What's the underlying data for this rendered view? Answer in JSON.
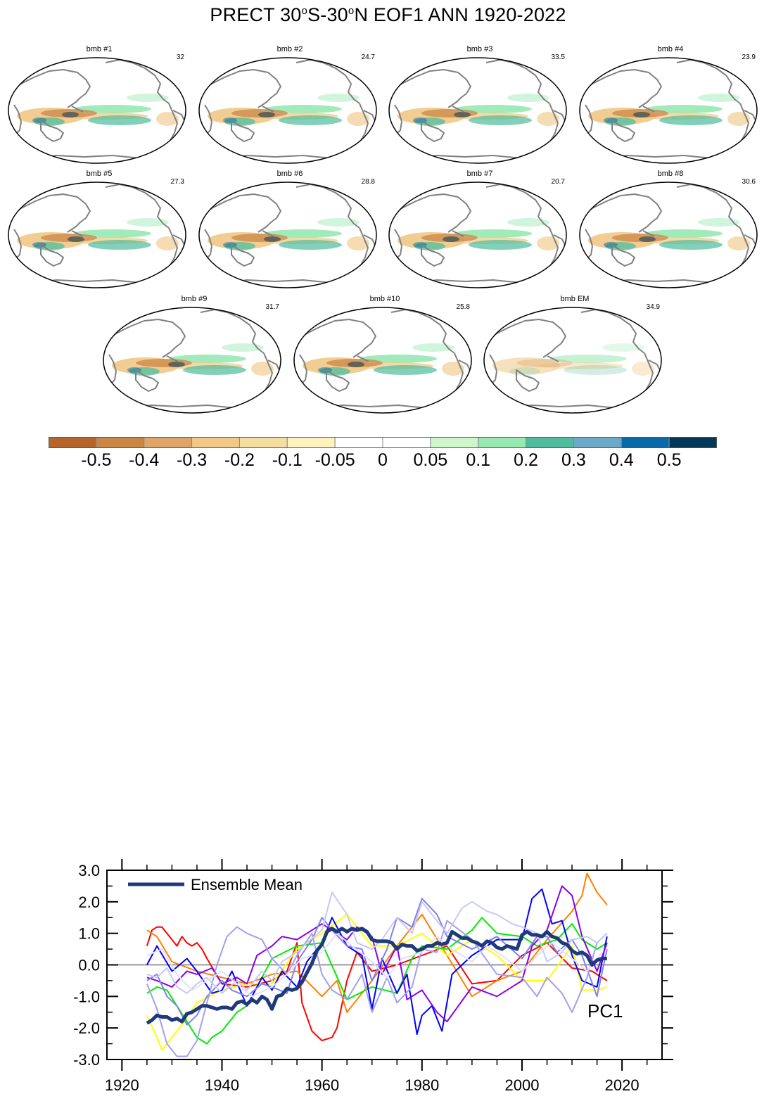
{
  "title": {
    "prefix": "PRECT 30",
    "deg1": "o",
    "mid": "S-30",
    "deg2": "o",
    "suffix": "N EOF1 ANN 1920-2022"
  },
  "panels": [
    {
      "title": "bmb #1",
      "pct": "32"
    },
    {
      "title": "bmb #2",
      "pct": "24.7"
    },
    {
      "title": "bmb #3",
      "pct": "33.5"
    },
    {
      "title": "bmb #4",
      "pct": "23.9"
    },
    {
      "title": "bmb #5",
      "pct": "27.3"
    },
    {
      "title": "bmb #6",
      "pct": "28.8"
    },
    {
      "title": "bmb #7",
      "pct": "20.7"
    },
    {
      "title": "bmb #8",
      "pct": "30.6"
    },
    {
      "title": "bmb #9",
      "pct": "31.7"
    },
    {
      "title": "bmb #10",
      "pct": "25.8"
    },
    {
      "title": "bmb EM",
      "pct": "34.9"
    }
  ],
  "colorbar": {
    "colors": [
      "#b5652a",
      "#cb8646",
      "#dfa467",
      "#f1c886",
      "#f4dd9f",
      "#fdf2bd",
      "#ffffff",
      "#ffffff",
      "#cdf7cb",
      "#97e8b1",
      "#4fbc9d",
      "#6baac6",
      "#0a6aa8",
      "#023858"
    ],
    "labels": [
      "-0.5",
      "-0.4",
      "-0.3",
      "-0.2",
      "-0.1",
      "-0.05",
      "0",
      "0.05",
      "0.1",
      "0.2",
      "0.3",
      "0.4",
      "0.5"
    ]
  },
  "map_colors": {
    "land_outline": "#808080",
    "brown": "#cb8646",
    "tan": "#f1c886",
    "green": "#97e8b1",
    "teal": "#4fbc9d",
    "blue": "#0a6aa8",
    "navy": "#023858"
  },
  "chart_data": {
    "type": "line",
    "title": "",
    "annotation": "PC1",
    "xlabel": "",
    "ylabel": "",
    "xlim": [
      1917,
      2028
    ],
    "ylim": [
      -3.0,
      3.0
    ],
    "xticks": [
      "1920",
      "1940",
      "1960",
      "1980",
      "2000",
      "2020"
    ],
    "yticks": [
      "-3.0",
      "-2.0",
      "-1.0",
      "0.0",
      "1.0",
      "2.0",
      "3.0"
    ],
    "legend": {
      "label": "Ensemble Mean",
      "placement": "top-left"
    },
    "reference_line": 0.0,
    "series": [
      {
        "color": "#ff0000",
        "x": [
          1925,
          1926,
          1927,
          1928,
          1929,
          1930,
          1931,
          1932,
          1933,
          1934,
          1935,
          1936,
          1937,
          1940,
          1945,
          1950,
          1953,
          1955,
          1956,
          1958,
          1960,
          1962,
          1963,
          1965,
          1967,
          1970,
          1975,
          1980,
          1985,
          1990,
          1995,
          2000,
          2005,
          2010,
          2014,
          2017
        ],
        "y": [
          0.6,
          1.1,
          1.2,
          1.2,
          1.0,
          0.8,
          0.6,
          0.9,
          0.7,
          0.6,
          0.7,
          0.5,
          0.2,
          -0.6,
          -0.7,
          -0.5,
          -0.2,
          0.7,
          -1.2,
          -2.1,
          -2.4,
          -2.3,
          -2.0,
          -0.5,
          0.4,
          -0.2,
          0.0,
          0.3,
          0.6,
          -0.6,
          -0.5,
          0.3,
          0.7,
          -0.1,
          -0.2,
          -0.5
        ]
      },
      {
        "color": "#ff8000",
        "x": [
          1925,
          1927,
          1930,
          1935,
          1940,
          1945,
          1950,
          1955,
          1960,
          1963,
          1965,
          1970,
          1975,
          1980,
          1985,
          1990,
          1995,
          2000,
          2005,
          2010,
          2012,
          2013,
          2015,
          2017
        ],
        "y": [
          1.1,
          0.9,
          0.1,
          -0.2,
          -0.4,
          -0.6,
          -0.3,
          -0.2,
          -1.0,
          -0.5,
          -1.5,
          -0.5,
          0.6,
          1.6,
          0.3,
          -1.0,
          -0.5,
          -0.2,
          0.8,
          1.7,
          2.2,
          2.9,
          2.3,
          1.9
        ]
      },
      {
        "color": "#ffff00",
        "x": [
          1925,
          1927,
          1928,
          1930,
          1932,
          1935,
          1940,
          1945,
          1950,
          1955,
          1960,
          1965,
          1970,
          1975,
          1980,
          1985,
          1990,
          1995,
          2000,
          2005,
          2010,
          2012,
          2015,
          2017
        ],
        "y": [
          -1.6,
          -2.3,
          -2.7,
          -2.3,
          -1.9,
          -1.2,
          -0.8,
          -0.6,
          -0.6,
          0.5,
          1.0,
          1.6,
          0.6,
          0.6,
          1.0,
          0.3,
          0.8,
          0.3,
          -0.5,
          -0.5,
          0.6,
          -0.8,
          -0.8,
          -0.7
        ]
      },
      {
        "color": "#00ee00",
        "x": [
          1925,
          1927,
          1929,
          1931,
          1933,
          1935,
          1937,
          1938,
          1940,
          1943,
          1945,
          1948,
          1950,
          1955,
          1960,
          1965,
          1970,
          1975,
          1978,
          1980,
          1985,
          1990,
          1992,
          1995,
          2000,
          2003,
          2007,
          2010,
          2012,
          2015,
          2017
        ],
        "y": [
          -0.9,
          -0.7,
          -0.8,
          -1.3,
          -1.8,
          -2.3,
          -2.5,
          -2.3,
          -2.1,
          -1.5,
          -1.3,
          -0.4,
          0.2,
          0.6,
          0.7,
          -1.1,
          -0.7,
          -0.9,
          0.2,
          0.6,
          0.5,
          1.1,
          1.5,
          1.0,
          0.9,
          0.6,
          0.8,
          1.3,
          0.8,
          0.5,
          0.7
        ]
      },
      {
        "color": "#0000ff",
        "x": [
          1925,
          1927,
          1930,
          1933,
          1935,
          1938,
          1940,
          1942,
          1945,
          1948,
          1950,
          1952,
          1955,
          1957,
          1960,
          1962,
          1965,
          1968,
          1970,
          1972,
          1975,
          1977,
          1979,
          1980,
          1982,
          1984,
          1986,
          1990,
          1995,
          2000,
          2002,
          2004,
          2006,
          2008,
          2010,
          2012,
          2015,
          2017
        ],
        "y": [
          0.0,
          0.6,
          -0.2,
          0.2,
          -0.2,
          -0.9,
          -0.8,
          -0.2,
          -1.3,
          -0.4,
          -0.8,
          -0.2,
          -0.7,
          0.1,
          0.7,
          1.5,
          0.6,
          0.3,
          -1.4,
          0.2,
          -0.9,
          -0.3,
          -2.2,
          -1.6,
          -1.3,
          -2.1,
          -0.3,
          0.3,
          0.8,
          0.8,
          2.1,
          2.4,
          1.3,
          1.4,
          0.3,
          -0.5,
          -0.7,
          0.9
        ]
      },
      {
        "color": "#8800ee",
        "x": [
          1925,
          1927,
          1930,
          1933,
          1935,
          1938,
          1940,
          1943,
          1945,
          1947,
          1950,
          1952,
          1955,
          1958,
          1960,
          1963,
          1965,
          1967,
          1970,
          1972,
          1975,
          1977,
          1980,
          1983,
          1985,
          1990,
          1995,
          2000,
          2002,
          2005,
          2008,
          2010,
          2012,
          2015,
          2017
        ],
        "y": [
          -0.4,
          -0.5,
          -0.7,
          -0.2,
          -0.3,
          -0.1,
          -0.6,
          -0.4,
          -0.6,
          0.3,
          0.6,
          0.9,
          0.8,
          1.1,
          1.3,
          1.0,
          0.8,
          1.2,
          0.9,
          -0.3,
          0.6,
          -1.1,
          -0.8,
          -1.5,
          -1.8,
          -0.7,
          -1.0,
          -0.5,
          0.6,
          1.1,
          2.5,
          2.2,
          0.9,
          -0.2,
          0.7
        ]
      },
      {
        "color": "#8080ee",
        "x": [
          1925,
          1927,
          1929,
          1931,
          1933,
          1935,
          1937,
          1940,
          1942,
          1945,
          1948,
          1950,
          1953,
          1955,
          1958,
          1960,
          1962,
          1965,
          1968,
          1970,
          1973,
          1975,
          1978,
          1980,
          1983,
          1985,
          1990,
          1995,
          2000,
          2003,
          2005,
          2007,
          2010,
          2012,
          2015,
          2017
        ],
        "y": [
          -0.5,
          -0.3,
          -1.0,
          -1.3,
          -1.9,
          -1.6,
          -1.0,
          -0.5,
          -0.8,
          -1.0,
          -0.6,
          -0.7,
          -0.9,
          0.1,
          0.8,
          1.5,
          1.1,
          0.6,
          0.5,
          -0.5,
          0.5,
          1.5,
          1.2,
          2.1,
          1.6,
          0.9,
          0.5,
          0.9,
          0.2,
          0.9,
          0.9,
          0.4,
          0.8,
          0.3,
          -1.0,
          0.5
        ]
      },
      {
        "color": "#a0a0f0",
        "x": [
          1925,
          1927,
          1929,
          1931,
          1933,
          1935,
          1937,
          1939,
          1941,
          1943,
          1945,
          1948,
          1950,
          1953,
          1955,
          1958,
          1960,
          1962,
          1965,
          1968,
          1970,
          1973,
          1975,
          1978,
          1980,
          1983,
          1985,
          1990,
          1995,
          2000,
          2003,
          2005,
          2008,
          2010,
          2013,
          2015,
          2017
        ],
        "y": [
          -0.6,
          -1.4,
          -2.5,
          -2.9,
          -2.9,
          -2.4,
          -1.2,
          0.0,
          0.9,
          1.2,
          1.0,
          0.8,
          0.2,
          -0.3,
          0.3,
          1.0,
          -0.3,
          -0.8,
          -1.1,
          -0.3,
          -1.5,
          -0.4,
          -1.2,
          -0.7,
          0.5,
          0.4,
          1.4,
          0.8,
          -0.3,
          -0.4,
          -1.0,
          -0.4,
          -0.9,
          -1.5,
          -0.4,
          0.7,
          1.0
        ]
      },
      {
        "color": "#c8c8f8",
        "x": [
          1925,
          1927,
          1929,
          1931,
          1933,
          1935,
          1937,
          1940,
          1943,
          1945,
          1948,
          1950,
          1952,
          1955,
          1957,
          1960,
          1962,
          1965,
          1967,
          1970,
          1972,
          1975,
          1978,
          1980,
          1983,
          1985,
          1988,
          1990,
          1993,
          1995,
          1998,
          2000,
          2003,
          2005,
          2008,
          2010,
          2013,
          2015,
          2017
        ],
        "y": [
          -0.3,
          -0.4,
          -0.1,
          -0.7,
          -0.9,
          -0.6,
          -0.4,
          -0.9,
          -0.5,
          -0.8,
          -0.2,
          -0.5,
          0.1,
          0.4,
          0.7,
          1.1,
          2.3,
          1.6,
          0.7,
          0.5,
          0.8,
          1.5,
          1.0,
          2.0,
          1.4,
          1.0,
          1.8,
          2.0,
          1.7,
          1.6,
          1.3,
          1.2,
          1.0,
          0.1,
          0.4,
          0.8,
          0.9,
          0.7,
          1.0
        ]
      },
      {
        "color": "#e0e0fa",
        "x": [
          1925,
          1928,
          1931,
          1934,
          1937,
          1940,
          1943,
          1946,
          1950,
          1953,
          1956,
          1960,
          1963,
          1966,
          1970,
          1973,
          1976,
          1980,
          1983,
          1986,
          1990,
          1993,
          1996,
          2000,
          2003,
          2006,
          2010,
          2013,
          2016
        ],
        "y": [
          0.3,
          0.5,
          -0.3,
          -0.8,
          -0.5,
          -0.2,
          -0.6,
          -1.0,
          -0.7,
          -0.3,
          0.2,
          0.4,
          1.0,
          0.6,
          0.1,
          -0.4,
          0.2,
          0.4,
          0.9,
          0.5,
          0.1,
          0.6,
          0.3,
          -0.2,
          0.3,
          0.7,
          0.2,
          -0.2,
          0.4
        ]
      }
    ],
    "ensemble_mean": {
      "name": "Ensemble Mean",
      "color": "#1f3a7a",
      "x": [
        1925,
        1926,
        1927,
        1928,
        1929,
        1930,
        1931,
        1932,
        1933,
        1934,
        1935,
        1936,
        1937,
        1938,
        1939,
        1940,
        1941,
        1942,
        1943,
        1944,
        1945,
        1946,
        1947,
        1948,
        1949,
        1950,
        1951,
        1952,
        1953,
        1954,
        1955,
        1956,
        1957,
        1958,
        1959,
        1960,
        1961,
        1962,
        1963,
        1964,
        1965,
        1966,
        1967,
        1968,
        1969,
        1970,
        1971,
        1972,
        1973,
        1974,
        1975,
        1976,
        1977,
        1978,
        1979,
        1980,
        1981,
        1982,
        1983,
        1984,
        1985,
        1986,
        1987,
        1988,
        1989,
        1990,
        1991,
        1992,
        1993,
        1994,
        1995,
        1996,
        1997,
        1998,
        1999,
        2000,
        2001,
        2002,
        2003,
        2004,
        2005,
        2006,
        2007,
        2008,
        2009,
        2010,
        2011,
        2012,
        2013,
        2014,
        2015,
        2016,
        2017
      ],
      "y": [
        -1.85,
        -1.75,
        -1.6,
        -1.65,
        -1.65,
        -1.75,
        -1.7,
        -1.8,
        -1.55,
        -1.5,
        -1.4,
        -1.3,
        -1.3,
        -1.35,
        -1.4,
        -1.35,
        -1.35,
        -1.4,
        -1.2,
        -1.15,
        -1.25,
        -1.1,
        -1.2,
        -1.0,
        -1.1,
        -1.4,
        -1.0,
        -0.95,
        -0.75,
        -0.8,
        -0.75,
        -0.55,
        -0.25,
        0.05,
        0.45,
        0.65,
        1.05,
        1.15,
        1.05,
        1.15,
        1.05,
        1.15,
        1.1,
        1.15,
        1.05,
        0.8,
        0.75,
        0.75,
        0.75,
        0.7,
        0.5,
        0.65,
        0.6,
        0.6,
        0.45,
        0.5,
        0.6,
        0.6,
        0.7,
        0.65,
        0.7,
        1.05,
        0.95,
        0.85,
        0.85,
        0.75,
        0.7,
        0.6,
        0.75,
        0.7,
        0.55,
        0.5,
        0.6,
        0.55,
        0.5,
        0.95,
        1.05,
        0.95,
        0.95,
        0.9,
        1.05,
        0.9,
        0.85,
        0.7,
        0.65,
        0.45,
        0.35,
        0.4,
        0.3,
        0.0,
        0.15,
        0.2,
        0.2
      ]
    }
  }
}
